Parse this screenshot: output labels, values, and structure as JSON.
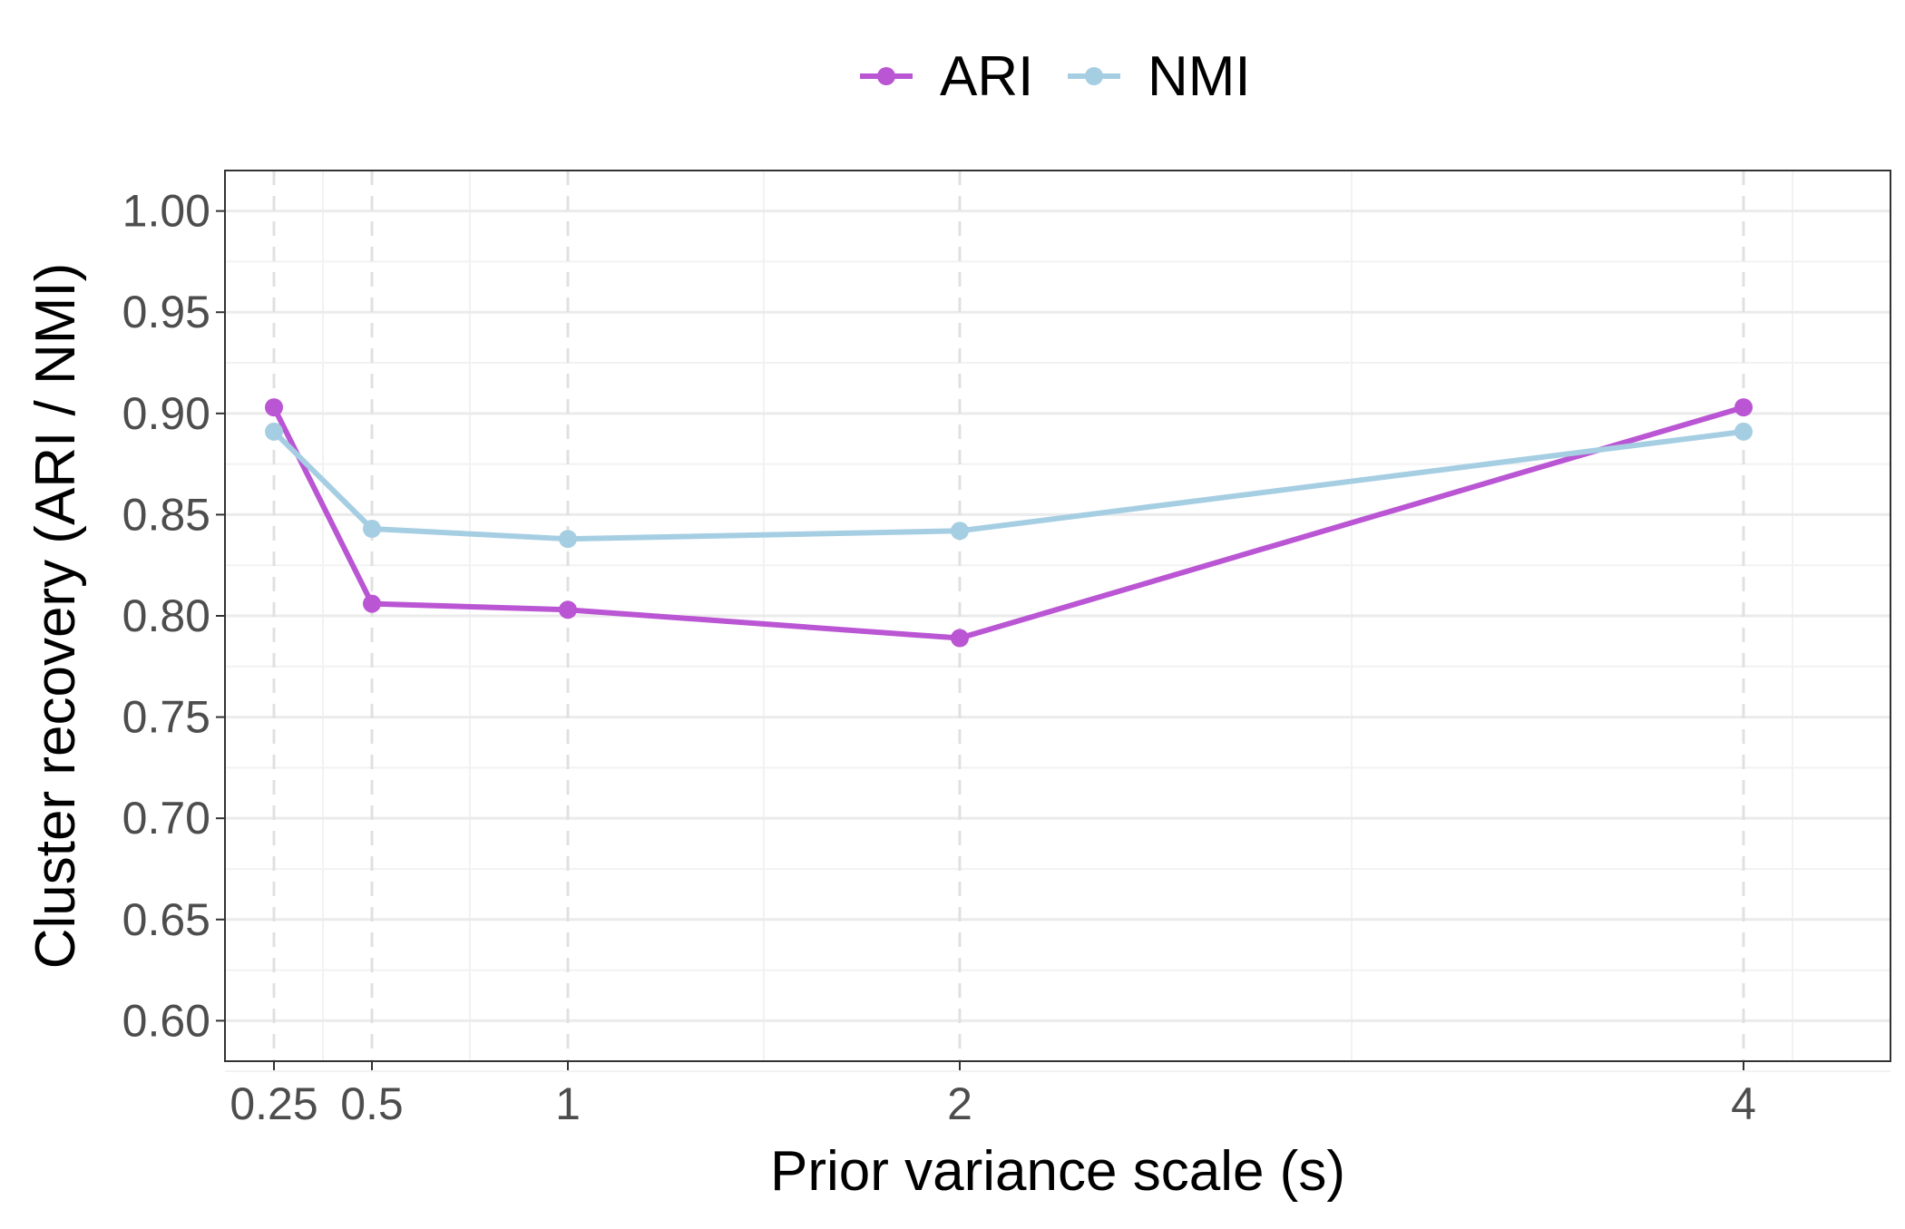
{
  "chart_data": {
    "type": "line",
    "title": "",
    "xlabel": "Prior variance scale (s)",
    "ylabel": "Cluster recovery (ARI / NMI)",
    "x": [
      0.25,
      0.5,
      1,
      2,
      4
    ],
    "x_tick_labels": [
      "0.25",
      "0.5",
      "1",
      "2",
      "4"
    ],
    "y_ticks": [
      0.6,
      0.65,
      0.7,
      0.75,
      0.8,
      0.85,
      0.9,
      0.95,
      1.0
    ],
    "y_tick_labels": [
      "0.60",
      "0.65",
      "0.70",
      "0.75",
      "0.80",
      "0.85",
      "0.90",
      "0.95",
      "1.00"
    ],
    "ylim": [
      0.58,
      1.02
    ],
    "xlim": [
      0.125,
      4.375
    ],
    "grid": true,
    "vertical_reference_lines": "dashed at each x value",
    "legend_placement": "top-center",
    "series": [
      {
        "name": "ARI",
        "color": "#BA55D3",
        "values": [
          0.903,
          0.806,
          0.803,
          0.789,
          0.903
        ]
      },
      {
        "name": "NMI",
        "color": "#A6CEE3",
        "values": [
          0.891,
          0.843,
          0.838,
          0.842,
          0.891
        ]
      }
    ]
  }
}
